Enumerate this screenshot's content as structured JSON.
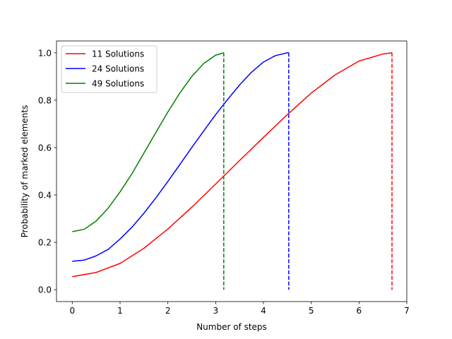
{
  "chart_data": {
    "type": "line",
    "title": "",
    "xlabel": "Number of steps",
    "ylabel": "Probability of marked elements",
    "xlim": [
      -0.33,
      7.0
    ],
    "ylim": [
      -0.05,
      1.05
    ],
    "xticks": [
      0,
      1,
      2,
      3,
      4,
      5,
      6,
      7
    ],
    "yticks": [
      0.0,
      0.2,
      0.4,
      0.6,
      0.8,
      1.0
    ],
    "xtick_labels": [
      "0",
      "1",
      "2",
      "3",
      "4",
      "5",
      "6",
      "7"
    ],
    "ytick_labels": [
      "0.0",
      "0.2",
      "0.4",
      "0.6",
      "0.8",
      "1.0"
    ],
    "grid": false,
    "legend_position": "top-left",
    "series": [
      {
        "name": "11 Solutions",
        "color": "#ff0000",
        "x": [
          0,
          0.5,
          1,
          1.5,
          2,
          2.5,
          3,
          3.5,
          4,
          4.5,
          5,
          5.5,
          6,
          6.5,
          6.69
        ],
        "y": [
          0.055,
          0.073,
          0.111,
          0.175,
          0.256,
          0.348,
          0.446,
          0.545,
          0.643,
          0.739,
          0.83,
          0.907,
          0.965,
          0.995,
          1.0
        ],
        "drop_x": 6.69
      },
      {
        "name": "24 Solutions",
        "color": "#0000ff",
        "x": [
          0,
          0.25,
          0.5,
          0.75,
          1,
          1.25,
          1.5,
          1.75,
          2,
          2.25,
          2.5,
          2.75,
          3,
          3.25,
          3.5,
          3.75,
          4,
          4.25,
          4.5,
          4.53
        ],
        "y": [
          0.12,
          0.125,
          0.143,
          0.17,
          0.214,
          0.264,
          0.323,
          0.388,
          0.457,
          0.528,
          0.6,
          0.67,
          0.739,
          0.803,
          0.864,
          0.918,
          0.961,
          0.988,
          1.0,
          1.0
        ],
        "drop_x": 4.53
      },
      {
        "name": "49 Solutions",
        "color": "#008000",
        "x": [
          0,
          0.25,
          0.5,
          0.75,
          1,
          1.25,
          1.5,
          1.75,
          2,
          2.25,
          2.5,
          2.75,
          3,
          3.17
        ],
        "y": [
          0.245,
          0.255,
          0.29,
          0.344,
          0.413,
          0.49,
          0.577,
          0.664,
          0.75,
          0.83,
          0.9,
          0.955,
          0.99,
          1.0
        ],
        "drop_x": 3.17
      }
    ]
  }
}
